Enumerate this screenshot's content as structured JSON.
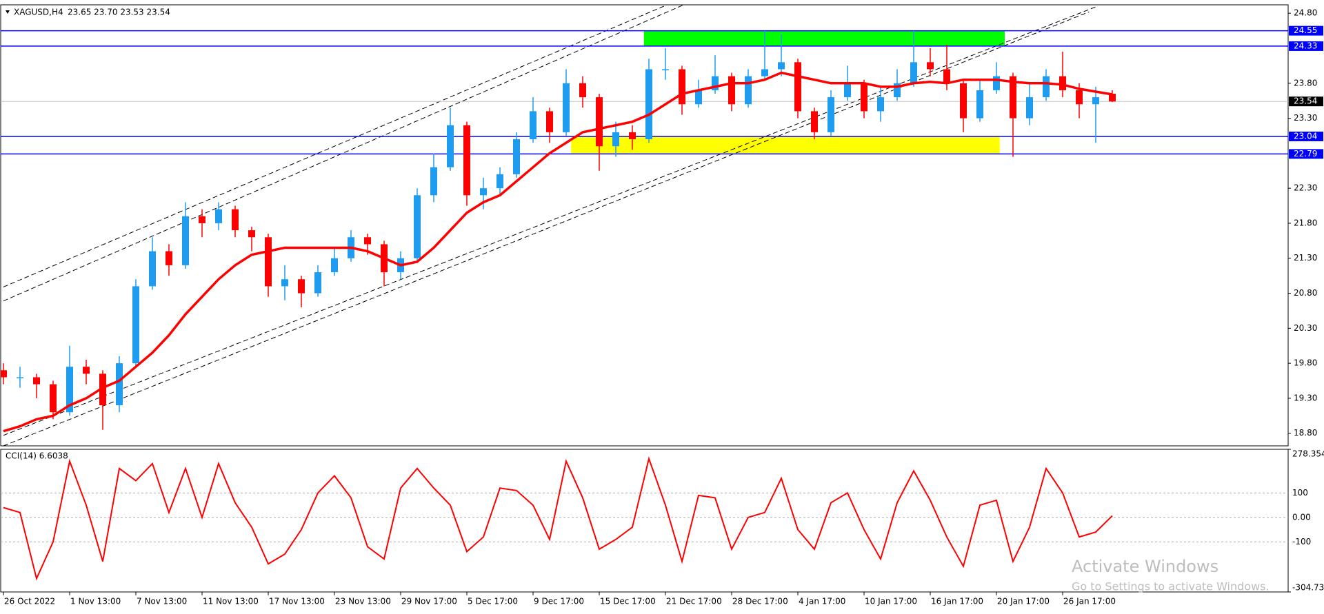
{
  "chart_data": [
    {
      "type": "candlestick",
      "title": "XAGUSD,H4",
      "subtitle": "23.65 23.70 23.53 23.54",
      "categories": [
        "26 Oct 2022",
        null,
        null,
        null,
        "1 Nov 13:00",
        null,
        null,
        null,
        "7 Nov 13:00",
        null,
        null,
        null,
        "11 Nov 13:00",
        null,
        null,
        null,
        "17 Nov 13:00",
        null,
        null,
        null,
        "23 Nov 13:00",
        null,
        null,
        null,
        "29 Nov 17:00",
        null,
        null,
        null,
        "5 Dec 17:00",
        null,
        null,
        null,
        "9 Dec 17:00",
        null,
        null,
        null,
        "15 Dec 17:00",
        null,
        null,
        null,
        "21 Dec 17:00",
        null,
        null,
        null,
        "28 Dec 17:00",
        null,
        null,
        null,
        "4 Jan 17:00",
        null,
        null,
        null,
        "10 Jan 17:00",
        null,
        null,
        null,
        "16 Jan 17:00",
        null,
        null,
        null,
        "20 Jan 17:00",
        null,
        null,
        null,
        "26 Jan 17:00",
        null,
        null,
        null
      ],
      "open": [
        19.7,
        19.6,
        19.6,
        19.5,
        19.1,
        19.75,
        19.65,
        19.2,
        19.8,
        20.9,
        21.4,
        21.2,
        21.9,
        21.8,
        22.0,
        21.7,
        21.6,
        20.9,
        21.0,
        20.8,
        21.1,
        21.3,
        21.6,
        21.5,
        21.1,
        21.3,
        22.2,
        22.6,
        23.2,
        22.2,
        22.3,
        22.5,
        23.0,
        23.4,
        23.1,
        23.8,
        23.6,
        22.9,
        23.1,
        23.0,
        24.0,
        24.0,
        23.5,
        23.7,
        23.9,
        23.5,
        23.9,
        24.0,
        24.1,
        23.4,
        23.1,
        23.6,
        23.8,
        23.4,
        23.6,
        23.8,
        24.1,
        24.0,
        23.8,
        23.3,
        23.7,
        23.9,
        23.3,
        23.6,
        23.9,
        23.7,
        23.5,
        23.65
      ],
      "high": [
        19.8,
        19.75,
        19.65,
        19.55,
        20.05,
        19.85,
        19.7,
        19.9,
        21.0,
        21.6,
        21.5,
        22.1,
        22.0,
        22.1,
        22.05,
        21.75,
        21.65,
        21.2,
        21.05,
        21.2,
        21.45,
        21.7,
        21.65,
        21.55,
        21.4,
        22.3,
        22.8,
        23.45,
        23.25,
        22.45,
        22.6,
        23.1,
        23.6,
        23.45,
        24.0,
        23.9,
        23.65,
        23.25,
        23.2,
        24.15,
        24.3,
        24.05,
        23.85,
        24.2,
        23.95,
        24.0,
        24.55,
        24.5,
        24.15,
        23.45,
        23.7,
        24.05,
        23.85,
        23.75,
        24.0,
        24.55,
        24.3,
        24.35,
        23.85,
        23.85,
        24.1,
        23.95,
        23.8,
        24.0,
        24.25,
        23.8,
        23.75,
        23.7
      ],
      "low": [
        19.5,
        19.45,
        19.3,
        19.0,
        19.05,
        19.5,
        18.85,
        19.1,
        19.75,
        20.85,
        21.05,
        21.15,
        21.6,
        21.7,
        21.6,
        21.4,
        20.75,
        20.7,
        20.6,
        20.75,
        21.05,
        21.25,
        21.35,
        20.9,
        21.0,
        21.25,
        22.1,
        22.55,
        22.05,
        22.0,
        22.2,
        22.45,
        22.95,
        22.95,
        23.05,
        23.45,
        22.55,
        22.75,
        22.85,
        22.95,
        23.85,
        23.35,
        23.45,
        23.65,
        23.4,
        23.45,
        23.85,
        23.9,
        23.3,
        23.0,
        23.05,
        23.55,
        23.3,
        23.25,
        23.55,
        23.75,
        23.9,
        23.7,
        23.1,
        23.25,
        23.65,
        22.75,
        23.2,
        23.55,
        23.6,
        23.3,
        22.95,
        23.53
      ],
      "close": [
        19.6,
        19.6,
        19.5,
        19.1,
        19.75,
        19.65,
        19.2,
        19.8,
        20.9,
        21.4,
        21.2,
        21.9,
        21.8,
        22.0,
        21.7,
        21.6,
        20.9,
        21.0,
        20.8,
        21.1,
        21.3,
        21.6,
        21.5,
        21.1,
        21.3,
        22.2,
        22.6,
        23.2,
        22.2,
        22.3,
        22.5,
        23.0,
        23.4,
        23.1,
        23.8,
        23.6,
        22.9,
        23.1,
        23.0,
        24.0,
        24.0,
        23.5,
        23.7,
        23.9,
        23.5,
        23.9,
        24.0,
        24.1,
        23.4,
        23.1,
        23.6,
        23.8,
        23.4,
        23.6,
        23.8,
        24.1,
        24.0,
        23.8,
        23.3,
        23.7,
        23.9,
        23.3,
        23.6,
        23.9,
        23.7,
        23.5,
        23.6,
        23.54
      ],
      "up_color": "#1e9cf0",
      "down_color": "#ff0000",
      "overlays": [
        {
          "type": "line",
          "color": "#ff0000",
          "values": [
            18.83,
            18.9,
            19.0,
            19.05,
            19.2,
            19.3,
            19.45,
            19.55,
            19.75,
            19.95,
            20.2,
            20.5,
            20.75,
            21.0,
            21.2,
            21.35,
            21.4,
            21.45,
            21.45,
            21.45,
            21.45,
            21.45,
            21.4,
            21.3,
            21.2,
            21.25,
            21.45,
            21.7,
            21.95,
            22.1,
            22.2,
            22.4,
            22.6,
            22.8,
            22.95,
            23.1,
            23.15,
            23.2,
            23.25,
            23.35,
            23.5,
            23.65,
            23.7,
            23.75,
            23.8,
            23.8,
            23.85,
            23.95,
            23.9,
            23.85,
            23.8,
            23.8,
            23.8,
            23.75,
            23.75,
            23.8,
            23.82,
            23.8,
            23.85,
            23.85,
            23.85,
            23.82,
            23.8,
            23.8,
            23.78,
            23.72,
            23.68,
            23.64
          ]
        }
      ],
      "levels": [
        24.55,
        24.33,
        23.04,
        22.79
      ],
      "level_color": "#0000ff",
      "last_price": 23.54,
      "zones": [
        {
          "x": [
            38.7,
            60.5
          ],
          "y": [
            24.33,
            24.55
          ],
          "color": "#00ff00"
        },
        {
          "x": [
            34.3,
            60.2
          ],
          "y": [
            22.79,
            23.04
          ],
          "color": "#ffff00"
        }
      ],
      "trendlines": [
        {
          "x": [
            0,
            40.1
          ],
          "y": [
            20.89,
            24.92
          ]
        },
        {
          "x": [
            0,
            41.1
          ],
          "y": [
            20.69,
            24.92
          ]
        },
        {
          "x": [
            0,
            66.1
          ],
          "y": [
            18.77,
            24.9
          ]
        },
        {
          "x": [
            0,
            65.6
          ],
          "y": [
            18.62,
            24.82
          ]
        }
      ],
      "ylim": [
        18.62,
        24.92
      ],
      "yticks": [
        {
          "value": 24.8,
          "label": "24.80"
        },
        {
          "value": 23.8,
          "label": "23.80"
        },
        {
          "value": 23.3,
          "label": "23.30"
        },
        {
          "value": 22.3,
          "label": "22.30"
        },
        {
          "value": 21.8,
          "label": "21.80"
        },
        {
          "value": 21.3,
          "label": "21.30"
        },
        {
          "value": 20.8,
          "label": "20.80"
        },
        {
          "value": 20.3,
          "label": "20.30"
        },
        {
          "value": 19.8,
          "label": "19.80"
        },
        {
          "value": 19.3,
          "label": "19.30"
        },
        {
          "value": 18.8,
          "label": "18.80"
        }
      ]
    },
    {
      "type": "line",
      "title": "CCI(14) 6.6038",
      "color": "#ff0000",
      "values": [
        40,
        20,
        -250,
        -100,
        230,
        50,
        -180,
        200,
        150,
        220,
        20,
        200,
        0,
        220,
        60,
        -40,
        -190,
        -150,
        -50,
        100,
        170,
        80,
        -120,
        -170,
        120,
        200,
        120,
        50,
        -140,
        -80,
        120,
        110,
        50,
        -90,
        230,
        80,
        -130,
        -90,
        -40,
        240,
        50,
        -180,
        90,
        80,
        -130,
        0,
        20,
        160,
        -50,
        -130,
        60,
        100,
        -50,
        -170,
        60,
        190,
        70,
        -80,
        -200,
        50,
        70,
        -180,
        -40,
        200,
        100,
        -80,
        -60,
        6.6038
      ],
      "ylim": [
        -304.736,
        278.354
      ],
      "yticks": [
        278.354,
        100,
        {
          "value": 0,
          "label": "0.00"
        },
        -100,
        -304.736
      ]
    }
  ],
  "watermark": [
    "Activate Windows",
    "Go to Settings to activate Windows."
  ]
}
